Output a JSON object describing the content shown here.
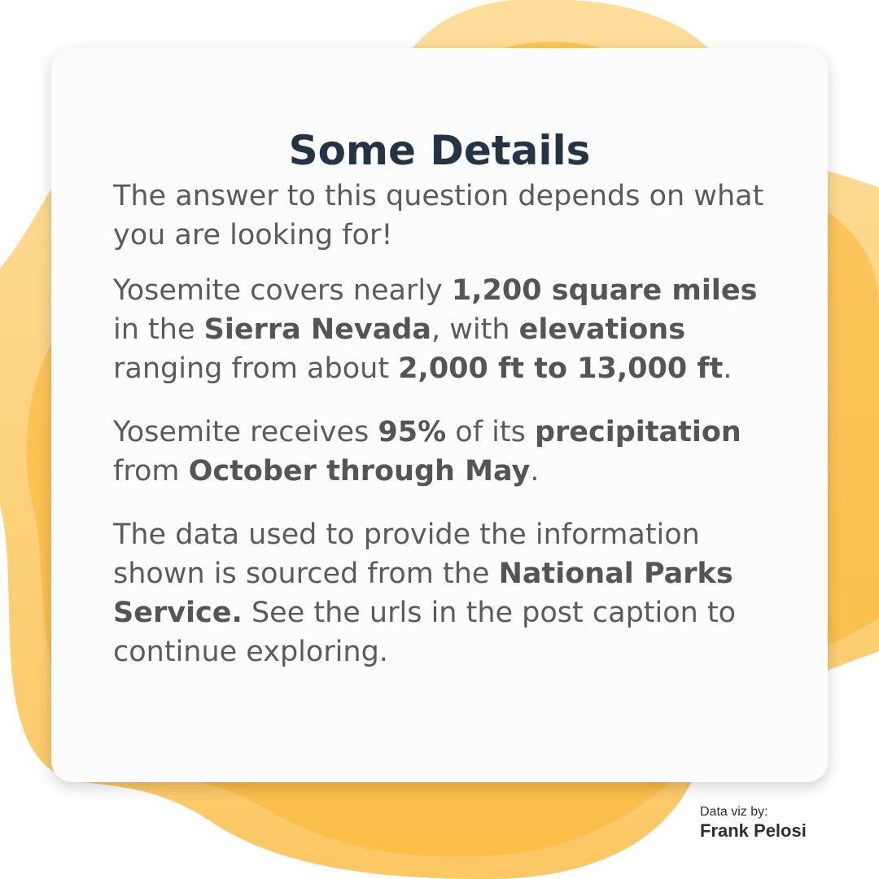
{
  "colors": {
    "blob_light": "#fdd27a",
    "blob_mid": "#fcc351",
    "blob_dark": "#fbb531",
    "title": "#243447",
    "body_text": "#5b5b5b",
    "card_bg": "#fcfcfc"
  },
  "card": {
    "title": "Some Details",
    "p1": "The answer to this question depends on what you are looking for!",
    "p2": {
      "t1": "Yosemite covers nearly ",
      "b1": "1,200 square miles",
      "t2": " in the ",
      "b2": "Sierra Nevada",
      "t3": ", with ",
      "b3": "elevations",
      "t4": " ranging from about ",
      "b4": "2,000 ft to 13,000 ft",
      "t5": "."
    },
    "p3": {
      "t1": "Yosemite receives ",
      "b1": "95%",
      "t2": " of its ",
      "b2": "precipitation",
      "t3": " from ",
      "b3": "October through May",
      "t4": "."
    },
    "p4": {
      "t1": "The data used to provide the information shown is sourced from the ",
      "b1": "National Parks Service.",
      "t2": " See the urls in the post caption to continue exploring."
    }
  },
  "credit": {
    "label": "Data viz by:",
    "name": "Frank Pelosi"
  }
}
